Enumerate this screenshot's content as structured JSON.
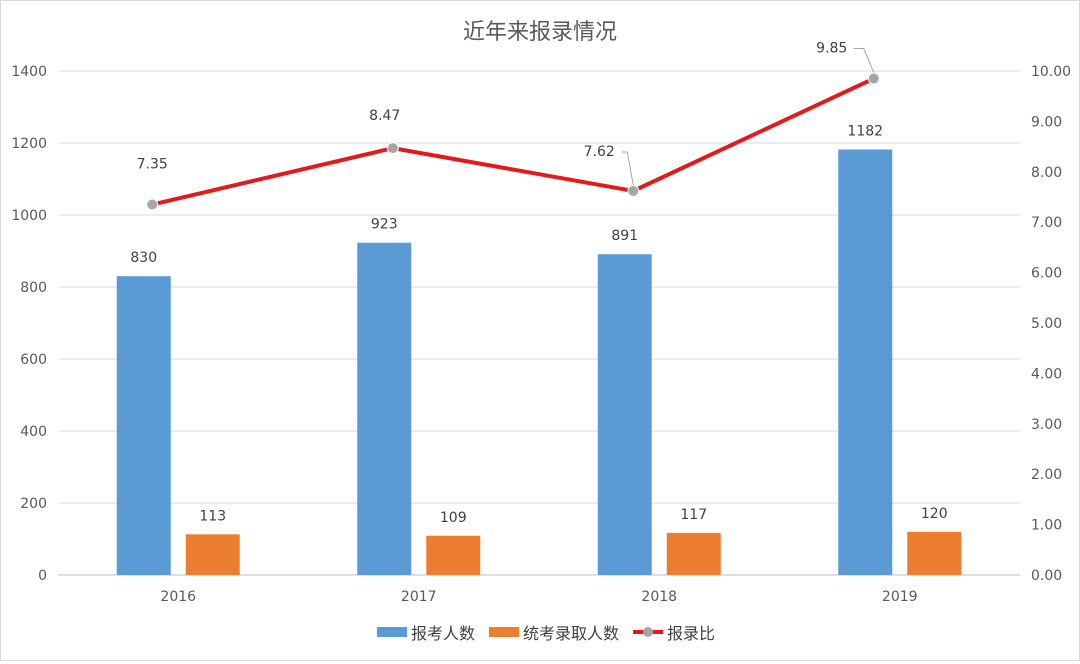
{
  "chart_data": {
    "type": "bar",
    "title": "近年来报录情况",
    "categories": [
      "2016",
      "2017",
      "2018",
      "2019"
    ],
    "series": [
      {
        "name": "报考人数",
        "kind": "bar",
        "axis": "left",
        "color": "#5b9bd5",
        "values": [
          830,
          923,
          891,
          1182
        ]
      },
      {
        "name": "统考录取人数",
        "kind": "bar",
        "axis": "left",
        "color": "#ed7d31",
        "values": [
          113,
          109,
          117,
          120
        ]
      },
      {
        "name": "报录比",
        "kind": "line",
        "axis": "right",
        "color": "#e31a1c",
        "marker_color": "#a5a5a5",
        "values": [
          7.35,
          8.47,
          7.62,
          9.85
        ]
      }
    ],
    "y_left": {
      "min": 0,
      "max": 1400,
      "ticks": [
        "0",
        "200",
        "400",
        "600",
        "800",
        "1000",
        "1200",
        "1400"
      ]
    },
    "y_right": {
      "min": 0,
      "max": 10,
      "ticks": [
        "0.00",
        "1.00",
        "2.00",
        "3.00",
        "4.00",
        "5.00",
        "6.00",
        "7.00",
        "8.00",
        "9.00",
        "10.00"
      ]
    },
    "line_labels": [
      "7.35",
      "8.47",
      "7.62",
      "9.85"
    ],
    "bar_labels": {
      "报考人数": [
        "830",
        "923",
        "891",
        "1182"
      ],
      "统考录取人数": [
        "113",
        "109",
        "117",
        "120"
      ]
    },
    "grid": true,
    "legend_position": "bottom"
  }
}
